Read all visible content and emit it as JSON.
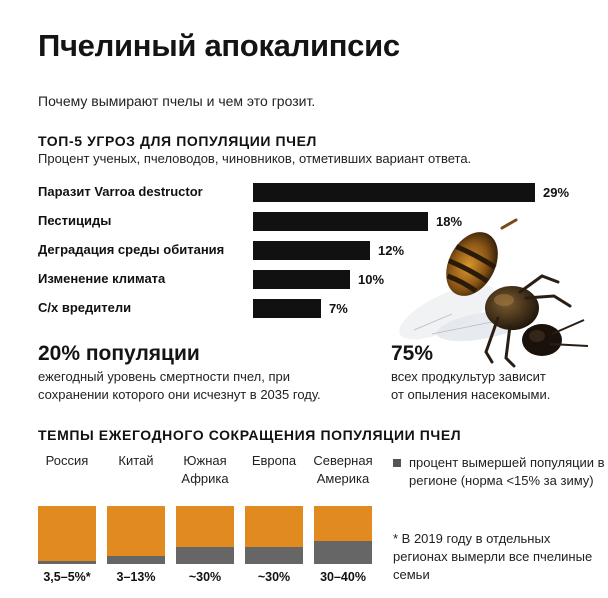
{
  "header": {
    "title": "Пчелиный апокалипсис",
    "subtitle": "Почему вымирают пчелы и чем это грозит."
  },
  "threats": {
    "title": "ТОП-5 УГРОЗ ДЛЯ ПОПУЛЯЦИИ ПЧЕЛ",
    "subtitle": "Процент ученых, пчеловодов, чиновников, отметивших вариант ответа."
  },
  "stats": {
    "left_value": "20% популяции",
    "left_desc_1": "ежегодный уровень смертности пчел, при",
    "left_desc_2": "сохранении которого они исчезнут в 2035 году.",
    "right_value": "75%",
    "right_desc_1": "всех продкультур зависит",
    "right_desc_2": "от опыления насекомыми."
  },
  "decline": {
    "title": "ТЕМПЫ ЕЖЕГОДНОГО СОКРАЩЕНИЯ ПОПУЛЯЦИИ ПЧЕЛ",
    "legend": "процент вымершей популяции в регионе (норма <15% за зиму)",
    "note": "* В 2019 году в отдельных регионах вымерли все пчелиные семьи"
  },
  "colors": {
    "bar": "#111111",
    "region_base": "#e08a20",
    "region_loss": "#666666"
  },
  "chart_data": [
    {
      "type": "bar",
      "orientation": "horizontal",
      "title": "ТОП-5 УГРОЗ ДЛЯ ПОПУЛЯЦИИ ПЧЕЛ",
      "categories": [
        "Паразит Varroa destructor",
        "Пестициды",
        "Деградация среды обитания",
        "Изменение климата",
        "С/х вредители"
      ],
      "values": [
        29,
        18,
        12,
        10,
        7
      ],
      "value_labels": [
        "29%",
        "18%",
        "12%",
        "10%",
        "7%"
      ],
      "unit": "%"
    },
    {
      "type": "bar",
      "style": "stacked-square",
      "title": "ТЕМПЫ ЕЖЕГОДНОГО СОКРАЩЕНИЯ ПОПУЛЯЦИИ ПЧЕЛ",
      "categories": [
        "Россия",
        "Китай",
        "Южная Африка",
        "Европа",
        "Северная Америка"
      ],
      "values": [
        5,
        13,
        30,
        30,
        40
      ],
      "value_labels": [
        "3,5–5%*",
        "3–13%",
        "~30%",
        "~30%",
        "30–40%"
      ],
      "unit": "%"
    }
  ]
}
